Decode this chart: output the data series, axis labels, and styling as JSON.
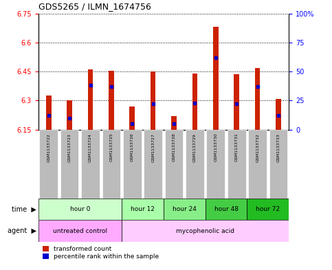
{
  "title": "GDS5265 / ILMN_1674756",
  "samples": [
    "GSM1133722",
    "GSM1133723",
    "GSM1133724",
    "GSM1133725",
    "GSM1133726",
    "GSM1133727",
    "GSM1133728",
    "GSM1133729",
    "GSM1133730",
    "GSM1133731",
    "GSM1133732",
    "GSM1133733"
  ],
  "transformed_count": [
    6.325,
    6.3,
    6.46,
    6.455,
    6.27,
    6.45,
    6.22,
    6.44,
    6.68,
    6.435,
    6.47,
    6.31
  ],
  "percentile_rank": [
    12,
    10,
    38,
    37,
    5,
    22,
    5,
    23,
    62,
    22,
    37,
    12
  ],
  "ylim_left": [
    6.15,
    6.75
  ],
  "ylim_right": [
    0,
    100
  ],
  "yticks_left": [
    6.15,
    6.3,
    6.45,
    6.6,
    6.75
  ],
  "yticks_right": [
    0,
    25,
    50,
    75,
    100
  ],
  "ytick_labels_left": [
    "6.15",
    "6.3",
    "6.45",
    "6.6",
    "6.75"
  ],
  "ytick_labels_right": [
    "0",
    "25",
    "50",
    "75",
    "100%"
  ],
  "bar_color": "#cc2200",
  "dot_color": "#0000cc",
  "bar_width": 0.25,
  "time_groups": [
    {
      "label": "hour 0",
      "indices": [
        0,
        1,
        2,
        3
      ],
      "color": "#ccffcc"
    },
    {
      "label": "hour 12",
      "indices": [
        4,
        5
      ],
      "color": "#aaffaa"
    },
    {
      "label": "hour 24",
      "indices": [
        6,
        7
      ],
      "color": "#88ee88"
    },
    {
      "label": "hour 48",
      "indices": [
        8,
        9
      ],
      "color": "#44cc44"
    },
    {
      "label": "hour 72",
      "indices": [
        10,
        11
      ],
      "color": "#22bb22"
    }
  ],
  "agent_groups": [
    {
      "label": "untreated control",
      "indices": [
        0,
        1,
        2,
        3
      ],
      "color": "#ffaaff"
    },
    {
      "label": "mycophenolic acid",
      "indices": [
        4,
        5,
        6,
        7,
        8,
        9,
        10,
        11
      ],
      "color": "#ffccff"
    }
  ],
  "legend_items": [
    {
      "label": "transformed count",
      "color": "#cc2200"
    },
    {
      "label": "percentile rank within the sample",
      "color": "#0000cc"
    }
  ],
  "time_label": "time",
  "agent_label": "agent",
  "background_color": "#ffffff",
  "sample_box_color": "#bbbbbb",
  "fig_width": 4.83,
  "fig_height": 3.93,
  "dpi": 100
}
